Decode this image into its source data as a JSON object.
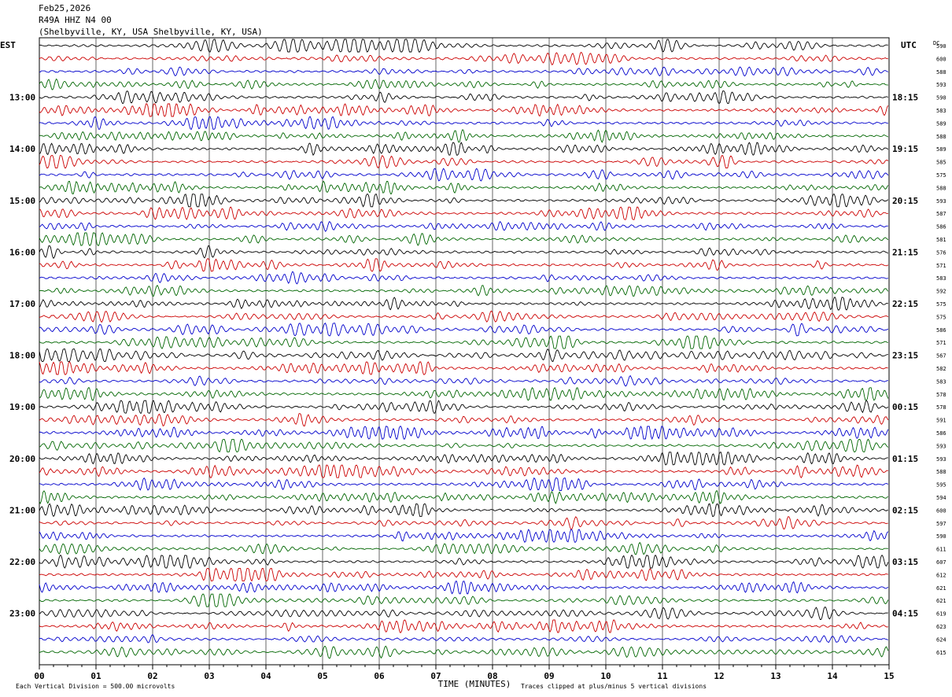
{
  "header": {
    "date": "Feb25,2026",
    "station": "R49A HHZ N4 00",
    "location": "(Shelbyville, KY, USA Shelbyville, KY, USA)"
  },
  "chart_data": {
    "type": "line",
    "title": "",
    "left_axis_label": "EST",
    "right_axis_label": "UTC",
    "dc_label": "DC",
    "xlabel": "TIME (MINUTES)",
    "xlim": [
      0,
      15
    ],
    "x_ticks": [
      "00",
      "01",
      "02",
      "03",
      "04",
      "05",
      "06",
      "07",
      "08",
      "09",
      "10",
      "11",
      "12",
      "13",
      "14",
      "15"
    ],
    "rows": 48,
    "trace_colors": [
      "#000000",
      "#cc0000",
      "#0000cc",
      "#006600"
    ],
    "left_hour_labels": [
      {
        "row": 4,
        "text": "13:00"
      },
      {
        "row": 8,
        "text": "14:00"
      },
      {
        "row": 12,
        "text": "15:00"
      },
      {
        "row": 16,
        "text": "16:00"
      },
      {
        "row": 20,
        "text": "17:00"
      },
      {
        "row": 24,
        "text": "18:00"
      },
      {
        "row": 28,
        "text": "19:00"
      },
      {
        "row": 32,
        "text": "20:00"
      },
      {
        "row": 36,
        "text": "21:00"
      },
      {
        "row": 40,
        "text": "22:00"
      },
      {
        "row": 44,
        "text": "23:00"
      }
    ],
    "right_hour_labels": [
      {
        "row": 4,
        "text": "18:15"
      },
      {
        "row": 8,
        "text": "19:15"
      },
      {
        "row": 12,
        "text": "20:15"
      },
      {
        "row": 16,
        "text": "21:15"
      },
      {
        "row": 20,
        "text": "22:15"
      },
      {
        "row": 24,
        "text": "23:15"
      },
      {
        "row": 28,
        "text": "00:15"
      },
      {
        "row": 32,
        "text": "01:15"
      },
      {
        "row": 36,
        "text": "02:15"
      },
      {
        "row": 40,
        "text": "03:15"
      },
      {
        "row": 44,
        "text": "04:15"
      }
    ],
    "dc_values": [
      "590",
      "600",
      "588",
      "593",
      "590",
      "583",
      "589",
      "588",
      "589",
      "585",
      "575",
      "588",
      "593",
      "587",
      "586",
      "581",
      "576",
      "571",
      "583",
      "592",
      "575",
      "575",
      "586",
      "571",
      "567",
      "582",
      "583",
      "578",
      "578",
      "591",
      "586",
      "593",
      "593",
      "588",
      "595",
      "594",
      "600",
      "597",
      "590",
      "611",
      "607",
      "612",
      "621",
      "621",
      "619",
      "623",
      "624",
      "615"
    ],
    "footer_left": "Each Vertical Division =   500.00 microvolts",
    "footer_right": "Traces clipped at plus/minus 5 vertical divisions"
  }
}
